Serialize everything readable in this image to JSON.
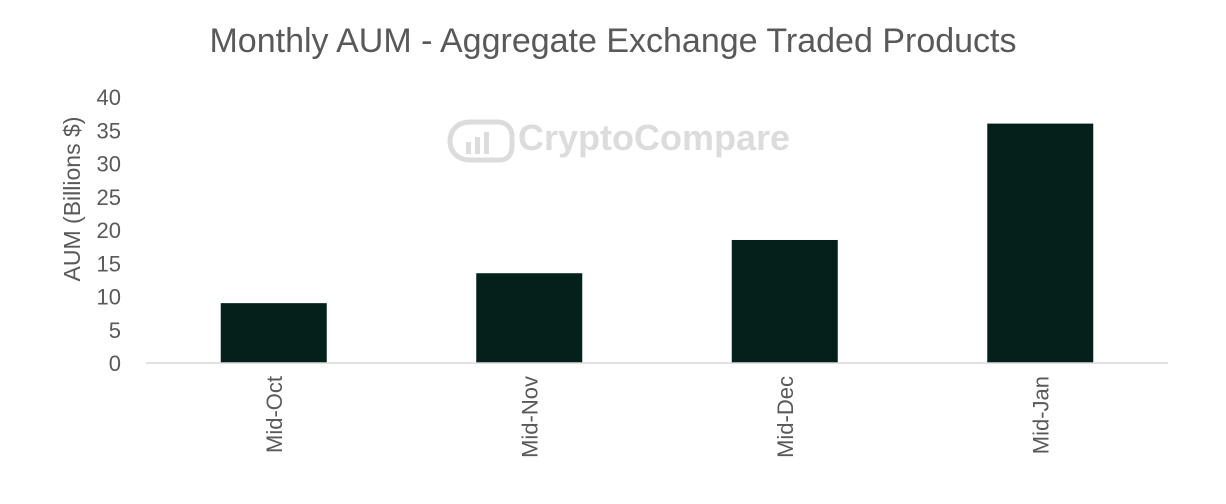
{
  "chart_data": {
    "type": "bar",
    "title": "Monthly AUM - Aggregate Exchange Traded Products",
    "xlabel": "",
    "ylabel": "AUM (Billions $)",
    "categories": [
      "Mid-Oct",
      "Mid-Nov",
      "Mid-Dec",
      "Mid-Jan"
    ],
    "values": [
      9,
      13.5,
      18.5,
      36
    ],
    "ylim": [
      0,
      40
    ],
    "yticks": [
      0,
      5,
      10,
      15,
      20,
      25,
      30,
      35,
      40
    ],
    "grid": false,
    "bar_color": "#03201a",
    "axis_color": "#d9d9d9"
  },
  "watermark": {
    "text": "CryptoCompare",
    "icon": "cryptocompare-logo-icon"
  }
}
